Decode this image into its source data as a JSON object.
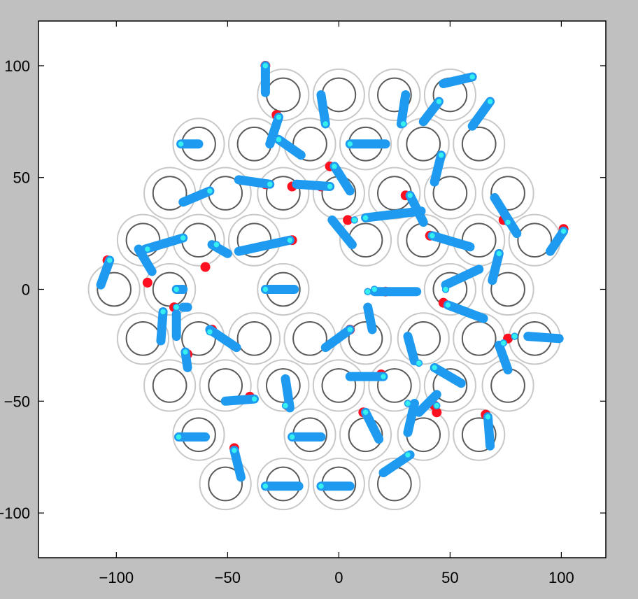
{
  "chart_data": {
    "type": "scatter",
    "title": "",
    "xlabel": "",
    "ylabel": "",
    "xlim": [
      -135,
      120
    ],
    "ylim": [
      -120,
      120
    ],
    "xticks": [
      -100,
      -50,
      0,
      50,
      100
    ],
    "yticks": [
      100,
      50,
      0,
      -50,
      -100
    ],
    "xtick_labels": [
      "−100",
      "−50",
      "0",
      "50",
      "100"
    ],
    "ytick_labels": [
      "100",
      "50",
      "0",
      "−50",
      "−100"
    ],
    "grid": false,
    "legend": "none",
    "colors": {
      "inner_circle": "#5a5a5a",
      "outer_circle": "#c8c8c8",
      "arm": "#1e9bf0",
      "tip": "#36f0f0",
      "target": "#ff1020"
    },
    "positioner_centers": [
      [
        -25,
        87
      ],
      [
        0,
        87
      ],
      [
        25,
        87
      ],
      [
        50,
        87
      ],
      [
        -63,
        65
      ],
      [
        -38,
        65
      ],
      [
        -13,
        65
      ],
      [
        12,
        65
      ],
      [
        38,
        65
      ],
      [
        63,
        65
      ],
      [
        -76,
        43
      ],
      [
        -51,
        43
      ],
      [
        -25,
        43
      ],
      [
        0,
        43
      ],
      [
        25,
        43
      ],
      [
        50,
        43
      ],
      [
        76,
        43
      ],
      [
        -88,
        22
      ],
      [
        -63,
        22
      ],
      [
        -38,
        22
      ],
      [
        12,
        22
      ],
      [
        38,
        22
      ],
      [
        63,
        22
      ],
      [
        88,
        22
      ],
      [
        -101,
        0
      ],
      [
        -76,
        0
      ],
      [
        -25,
        0
      ],
      [
        50,
        0
      ],
      [
        76,
        0
      ],
      [
        -88,
        -22
      ],
      [
        -63,
        -22
      ],
      [
        -38,
        -22
      ],
      [
        -13,
        -22
      ],
      [
        12,
        -22
      ],
      [
        38,
        -22
      ],
      [
        63,
        -22
      ],
      [
        88,
        -22
      ],
      [
        -76,
        -43
      ],
      [
        -51,
        -43
      ],
      [
        -25,
        -43
      ],
      [
        0,
        -43
      ],
      [
        25,
        -43
      ],
      [
        50,
        -43
      ],
      [
        76,
        -43
      ],
      [
        -63,
        -65
      ],
      [
        -13,
        -65
      ],
      [
        12,
        -65
      ],
      [
        38,
        -65
      ],
      [
        63,
        -65
      ],
      [
        -51,
        -87
      ],
      [
        -25,
        -87
      ],
      [
        0,
        -87
      ],
      [
        25,
        -87
      ]
    ],
    "arms": [
      [
        -33,
        88,
        -33,
        100
      ],
      [
        -8,
        87,
        -6,
        74
      ],
      [
        30,
        87,
        28,
        74
      ],
      [
        38,
        75,
        45,
        84
      ],
      [
        47,
        92,
        60,
        95
      ],
      [
        -63,
        65,
        -71,
        65
      ],
      [
        -31,
        65,
        -27,
        77
      ],
      [
        -17,
        60,
        -27,
        67
      ],
      [
        21,
        65,
        5,
        65
      ],
      [
        60,
        73,
        68,
        84
      ],
      [
        -70,
        39,
        -58,
        44
      ],
      [
        -45,
        49,
        -31,
        47
      ],
      [
        -19,
        47,
        -4,
        46
      ],
      [
        5,
        44,
        -2,
        55
      ],
      [
        37,
        35,
        12,
        32
      ],
      [
        43,
        48,
        46,
        60
      ],
      [
        80,
        25,
        70,
        41
      ],
      [
        -84,
        8,
        -90,
        18
      ],
      [
        -87,
        18,
        -70,
        23
      ],
      [
        -50,
        16,
        -57,
        20
      ],
      [
        -45,
        17,
        -22,
        22
      ],
      [
        -3,
        31,
        6,
        20
      ],
      [
        32,
        42,
        38,
        30
      ],
      [
        59,
        19,
        42,
        24
      ],
      [
        95,
        17,
        101,
        26
      ],
      [
        -107,
        2,
        -103,
        13
      ],
      [
        -73,
        0,
        -70,
        0
      ],
      [
        -33,
        0,
        -20,
        0
      ],
      [
        35,
        -1,
        16,
        -1
      ],
      [
        63,
        9,
        48,
        2
      ],
      [
        69,
        4,
        72,
        16
      ],
      [
        -73,
        -11,
        -73,
        -21
      ],
      [
        -80,
        -23,
        -79,
        -10
      ],
      [
        -70,
        -8,
        -68,
        -8
      ],
      [
        -58,
        -18,
        -46,
        -26
      ],
      [
        -6,
        -26,
        5,
        -18
      ],
      [
        34,
        -32,
        31,
        -21
      ],
      [
        65,
        -13,
        49,
        -7
      ],
      [
        85,
        -21,
        99,
        -22
      ],
      [
        -68,
        -35,
        -69,
        -28
      ],
      [
        -22,
        -53,
        -24,
        -40
      ],
      [
        -51,
        -50,
        -38,
        -49
      ],
      [
        20,
        -39,
        5,
        -39
      ],
      [
        36,
        -55,
        44,
        -47
      ],
      [
        43,
        -35,
        55,
        -42
      ],
      [
        76,
        -36,
        72,
        -25
      ],
      [
        -72,
        -66,
        -60,
        -66
      ],
      [
        -21,
        -66,
        -8,
        -66
      ],
      [
        12,
        -55,
        18,
        -67
      ],
      [
        31,
        -64,
        34,
        -51
      ],
      [
        67,
        -57,
        68,
        -70
      ],
      [
        -47,
        -72,
        -44,
        -84
      ],
      [
        -33,
        -88,
        -18,
        -88
      ],
      [
        -8,
        -88,
        5,
        -88
      ],
      [
        20,
        -82,
        32,
        -74
      ],
      [
        13,
        -8,
        15,
        -18
      ]
    ],
    "tips": [
      [
        -33,
        100
      ],
      [
        -6,
        74
      ],
      [
        29,
        74
      ],
      [
        45,
        84
      ],
      [
        60,
        95
      ],
      [
        -71,
        65
      ],
      [
        -27,
        77
      ],
      [
        -27,
        67
      ],
      [
        5,
        65
      ],
      [
        68,
        84
      ],
      [
        -58,
        44
      ],
      [
        -31,
        47
      ],
      [
        -4,
        46
      ],
      [
        -2,
        55
      ],
      [
        12,
        32
      ],
      [
        46,
        60
      ],
      [
        76,
        30
      ],
      [
        -86,
        18
      ],
      [
        -70,
        23
      ],
      [
        -55,
        20
      ],
      [
        -22,
        22
      ],
      [
        7,
        31
      ],
      [
        32,
        42
      ],
      [
        42,
        24
      ],
      [
        101,
        26
      ],
      [
        -103,
        13
      ],
      [
        -73,
        0
      ],
      [
        -33,
        0
      ],
      [
        16,
        0
      ],
      [
        48,
        0
      ],
      [
        72,
        16
      ],
      [
        -73,
        -8
      ],
      [
        -79,
        -10
      ],
      [
        -69,
        -28
      ],
      [
        -58,
        -19
      ],
      [
        5,
        -18
      ],
      [
        36,
        -33
      ],
      [
        49,
        -7
      ],
      [
        79,
        -21
      ],
      [
        74,
        -24
      ],
      [
        -24,
        -52
      ],
      [
        -38,
        -49
      ],
      [
        20,
        -39
      ],
      [
        44,
        -52
      ],
      [
        43,
        -35
      ],
      [
        -72,
        -66
      ],
      [
        -21,
        -66
      ],
      [
        12,
        -55
      ],
      [
        31,
        -51
      ],
      [
        67,
        -57
      ],
      [
        -47,
        -72
      ],
      [
        -33,
        -88
      ],
      [
        -8,
        -88
      ],
      [
        31,
        -74
      ],
      [
        13,
        -1
      ]
    ],
    "targets": [
      [
        -33,
        100
      ],
      [
        -28,
        78
      ],
      [
        -33,
        47
      ],
      [
        -4,
        55
      ],
      [
        -21,
        46
      ],
      [
        -8,
        46
      ],
      [
        4,
        31
      ],
      [
        30,
        42
      ],
      [
        41,
        24
      ],
      [
        74,
        31
      ],
      [
        101,
        27
      ],
      [
        -104,
        13
      ],
      [
        -21,
        22
      ],
      [
        -60,
        10
      ],
      [
        -86,
        3
      ],
      [
        -74,
        -8
      ],
      [
        -57,
        -18
      ],
      [
        5,
        -18
      ],
      [
        21,
        -1
      ],
      [
        47,
        -6
      ],
      [
        76,
        -22
      ],
      [
        -68,
        -29
      ],
      [
        -23,
        -52
      ],
      [
        -40,
        -48
      ],
      [
        19,
        -38
      ],
      [
        43,
        -52
      ],
      [
        44,
        -55
      ],
      [
        11,
        -55
      ],
      [
        66,
        -56
      ],
      [
        -47,
        -71
      ]
    ]
  }
}
